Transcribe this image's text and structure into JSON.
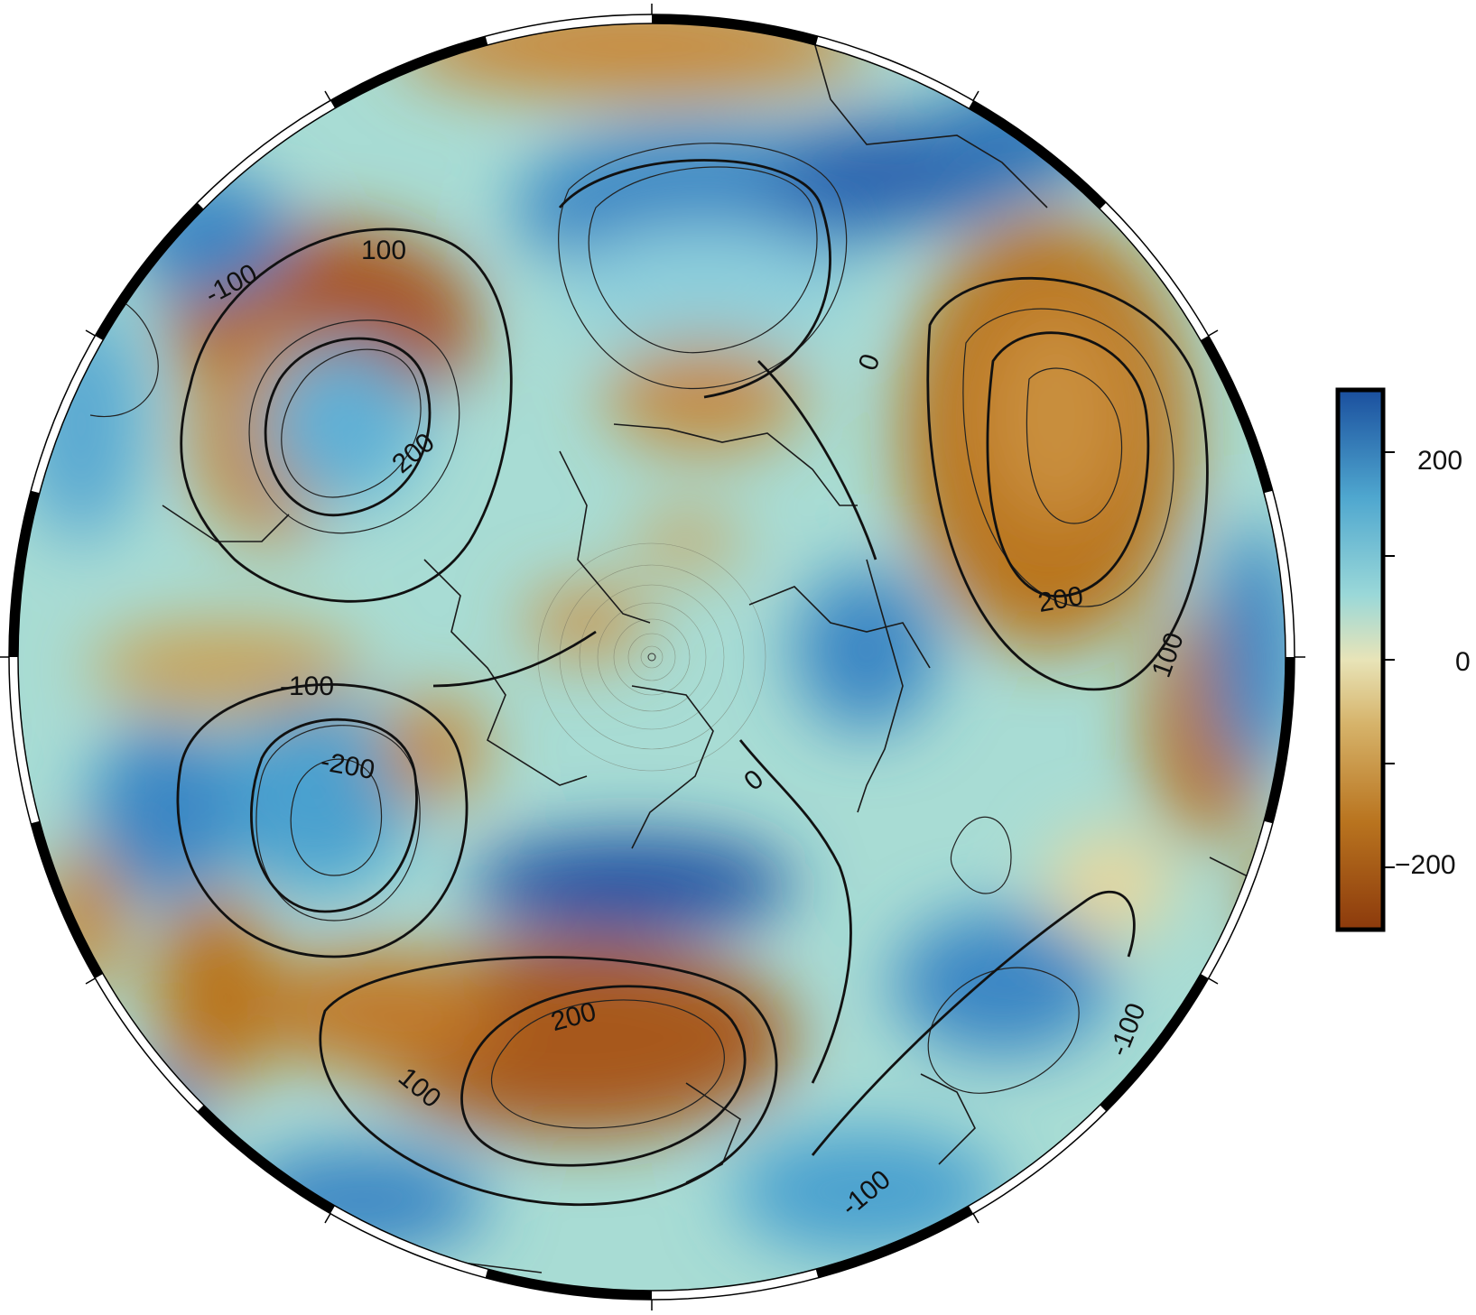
{
  "map": {
    "projection": "polar-stereographic",
    "frame_style": "alternating black and white border ticks",
    "color_map": [
      "#8c3a0c",
      "#b9741f",
      "#e8d79c",
      "#9ad8d8",
      "#4fa7cf",
      "#1a4f9e"
    ],
    "contour_labels": [
      "100",
      "-100",
      "200",
      "0",
      "200",
      "100",
      "-100",
      "-200",
      "0",
      "200",
      "100",
      "-100",
      "-100"
    ]
  },
  "colorbar": {
    "tick_labels": [
      "200",
      "0",
      "−200"
    ],
    "range": [
      -260,
      260
    ],
    "ticks": [
      200,
      100,
      0,
      -100,
      -200
    ]
  }
}
